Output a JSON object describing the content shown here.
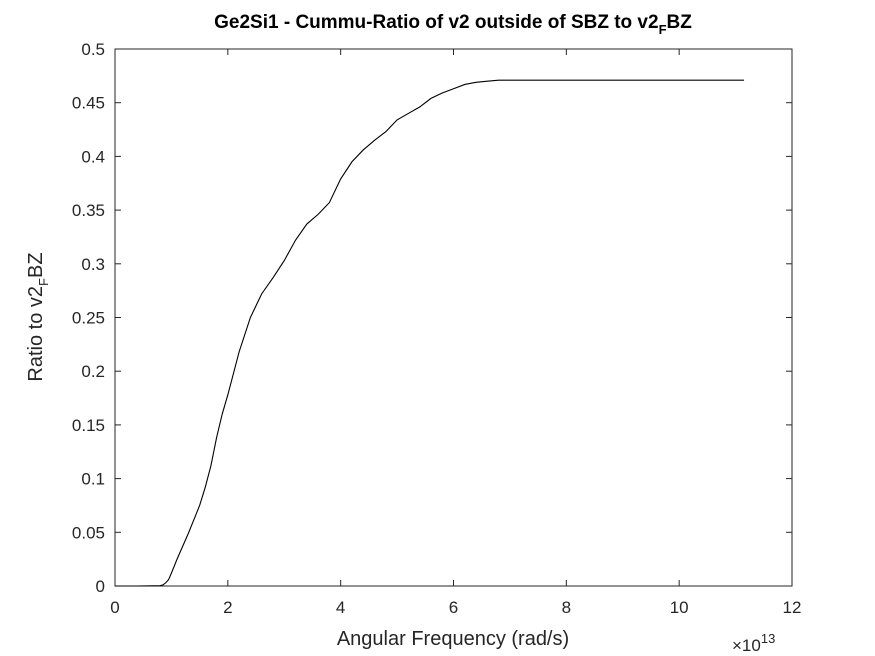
{
  "chart_data": {
    "type": "line",
    "title": {
      "prefix": "Ge2Si1 - Cummu-Ratio of v2 outside of SBZ to v2",
      "sub": "F",
      "suffix": "BZ"
    },
    "xlabel": "Angular Frequency (rad/s)",
    "ylabel": {
      "prefix": "Ratio to v2",
      "sub": "F",
      "suffix": "BZ"
    },
    "x_exponent": {
      "base": "×10",
      "power": "13"
    },
    "xlim": [
      0,
      12
    ],
    "ylim": [
      0,
      0.5
    ],
    "x_ticks": [
      "0",
      "2",
      "4",
      "6",
      "8",
      "10",
      "12"
    ],
    "y_ticks": [
      "0",
      "0.05",
      "0.1",
      "0.15",
      "0.2",
      "0.25",
      "0.3",
      "0.35",
      "0.4",
      "0.45",
      "0.5"
    ],
    "grid": false,
    "line_color": "#000000",
    "series": [
      {
        "x": [
          0,
          0.4,
          0.8,
          0.85,
          0.9,
          0.95,
          1.0,
          1.1,
          1.2,
          1.3,
          1.4,
          1.5,
          1.6,
          1.7,
          1.8,
          1.9,
          2.0,
          2.2,
          2.4,
          2.6,
          2.8,
          3.0,
          3.2,
          3.4,
          3.6,
          3.8,
          4.0,
          4.2,
          4.4,
          4.6,
          4.8,
          5.0,
          5.2,
          5.4,
          5.6,
          5.8,
          6.0,
          6.2,
          6.4,
          6.6,
          6.8,
          7.0,
          8.0,
          9.0,
          10.0,
          11.15
        ],
        "y": [
          0,
          0,
          0.0003,
          0.001,
          0.003,
          0.006,
          0.012,
          0.025,
          0.037,
          0.049,
          0.062,
          0.075,
          0.092,
          0.112,
          0.138,
          0.16,
          0.178,
          0.218,
          0.25,
          0.272,
          0.287,
          0.303,
          0.322,
          0.337,
          0.346,
          0.357,
          0.379,
          0.395,
          0.406,
          0.415,
          0.423,
          0.434,
          0.44,
          0.446,
          0.454,
          0.459,
          0.463,
          0.467,
          0.469,
          0.47,
          0.471,
          0.471,
          0.471,
          0.471,
          0.471,
          0.471
        ]
      }
    ]
  }
}
